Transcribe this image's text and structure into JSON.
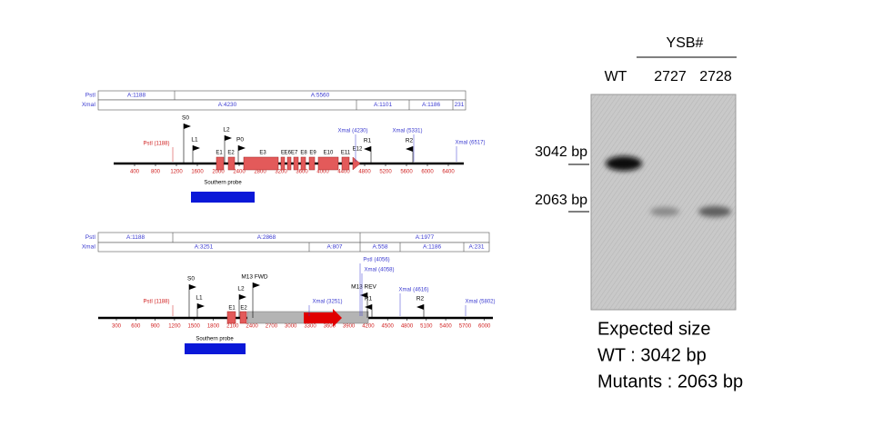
{
  "map1": {
    "pstI_row": {
      "label": "PstI",
      "fragments": [
        "A:1188",
        "A:5560"
      ]
    },
    "xmaI_row": {
      "label": "XmaI",
      "fragments": [
        "A:4230",
        "A:1101",
        "A:1186",
        "231"
      ]
    },
    "sites": [
      "PstI (1188)",
      "XmaI (4230)",
      "XmaI (5331)",
      "XmaI (6517)"
    ],
    "primers": [
      "S0",
      "L1",
      "L2",
      "P0",
      "R1",
      "R2"
    ],
    "exons": [
      "E1",
      "E2",
      "E3",
      "E",
      "E6E7",
      "E8",
      "E9",
      "E10",
      "E11",
      "E12"
    ],
    "axis_ticks": [
      "400",
      "800",
      "1200",
      "1600",
      "2000",
      "2400",
      "2800",
      "3200",
      "3600",
      "4000",
      "4400",
      "4800",
      "5200",
      "5600",
      "6000",
      "6400"
    ],
    "probe": "Southern probe"
  },
  "map2": {
    "pstI_row": {
      "label": "PstI",
      "fragments": [
        "A:1188",
        "A:2868",
        "A:1977"
      ]
    },
    "xmaI_row": {
      "label": "XmaI",
      "fragments": [
        "A:3251",
        "A:807",
        "A:558",
        "A:1186",
        "A:231"
      ]
    },
    "sites": [
      "PstI (1188)",
      "XmaI (3251)",
      "PstI (4056)",
      "XmaI (4058)",
      "XmaI (4616)",
      "XmaI (5802)"
    ],
    "primers": [
      "S0",
      "L1",
      "L2",
      "M13 FWD",
      "M13 REV",
      "R1",
      "R2"
    ],
    "exons": [
      "E1",
      "E2"
    ],
    "axis_ticks": [
      "300",
      "600",
      "900",
      "1200",
      "1500",
      "1800",
      "2100",
      "2400",
      "2700",
      "3000",
      "3300",
      "3600",
      "3900",
      "4200",
      "4500",
      "4800",
      "5100",
      "5400",
      "5700",
      "6000"
    ],
    "probe": "Southern probe"
  },
  "gel": {
    "group": "YSB#",
    "lanes": [
      "WT",
      "2727",
      "2728"
    ],
    "markers": [
      "3042 bp",
      "2063 bp"
    ],
    "expected": {
      "title": "Expected size",
      "lines": [
        "WT : 3042 bp",
        "Mutants : 2063 bp"
      ]
    }
  }
}
